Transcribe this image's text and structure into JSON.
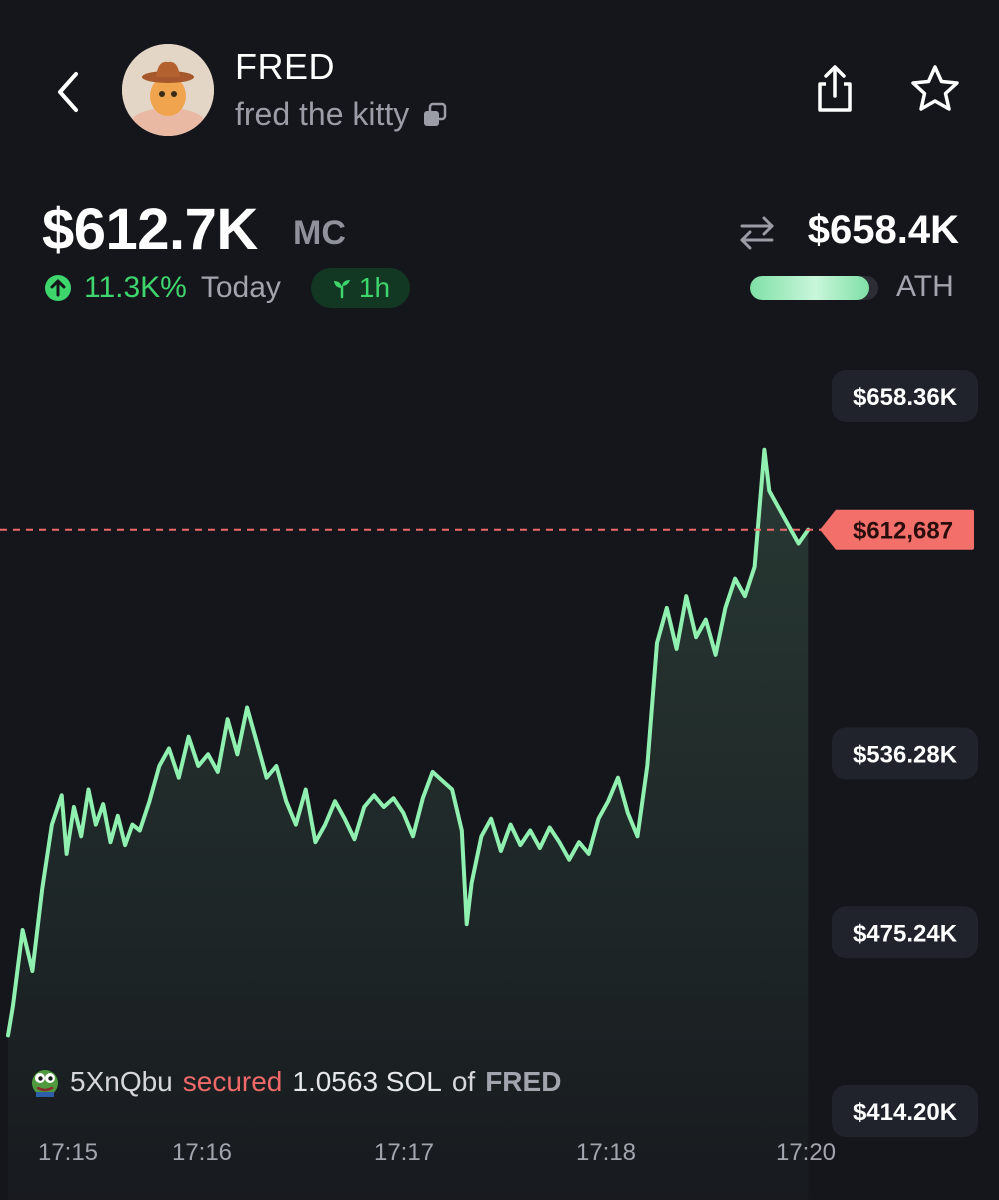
{
  "header": {
    "symbol": "FRED",
    "name": "fred the kitty"
  },
  "stats": {
    "market_cap": "$612.7K",
    "market_cap_label": "MC",
    "change_pct": "11.3K%",
    "change_period": "Today",
    "age_badge": "1h",
    "ath_value": "$658.4K",
    "ath_label": "ATH",
    "ath_progress": 0.93
  },
  "colors": {
    "background": "#15161c",
    "line": "#8ff0b0",
    "positive": "#3ed56d",
    "negative": "#f06969"
  },
  "chart_data": {
    "type": "line",
    "y_ticks": [
      "$658.36K",
      "$536.28K",
      "$475.24K",
      "$414.20K"
    ],
    "y_tick_values": [
      658360,
      536280,
      475240,
      414200
    ],
    "current_price_label": "$612,687",
    "current_price": 612687,
    "x_ticks": [
      "17:15",
      "17:16",
      "17:17",
      "17:18",
      "17:20"
    ],
    "x": [
      "17:15",
      "17:15:30",
      "17:16",
      "17:16:30",
      "17:17",
      "17:17:30",
      "17:18",
      "17:18:30",
      "17:19",
      "17:19:30",
      "17:19:45",
      "17:20"
    ],
    "values": [
      [
        0.0,
        440000
      ],
      [
        0.02,
        450000
      ],
      [
        0.06,
        476000
      ],
      [
        0.1,
        462000
      ],
      [
        0.14,
        490000
      ],
      [
        0.18,
        512000
      ],
      [
        0.22,
        522000
      ],
      [
        0.24,
        502000
      ],
      [
        0.27,
        518000
      ],
      [
        0.3,
        508000
      ],
      [
        0.33,
        524000
      ],
      [
        0.36,
        512000
      ],
      [
        0.39,
        519000
      ],
      [
        0.42,
        506000
      ],
      [
        0.45,
        515000
      ],
      [
        0.48,
        505000
      ],
      [
        0.51,
        512000
      ],
      [
        0.54,
        510000
      ],
      [
        0.58,
        520000
      ],
      [
        0.62,
        532000
      ],
      [
        0.66,
        538000
      ],
      [
        0.7,
        528000
      ],
      [
        0.74,
        542000
      ],
      [
        0.78,
        532000
      ],
      [
        0.82,
        536000
      ],
      [
        0.86,
        530000
      ],
      [
        0.9,
        548000
      ],
      [
        0.94,
        536000
      ],
      [
        0.98,
        552000
      ],
      [
        1.02,
        540000
      ],
      [
        1.06,
        528000
      ],
      [
        1.1,
        532000
      ],
      [
        1.14,
        520000
      ],
      [
        1.18,
        512000
      ],
      [
        1.22,
        524000
      ],
      [
        1.26,
        506000
      ],
      [
        1.3,
        512000
      ],
      [
        1.34,
        520000
      ],
      [
        1.38,
        514000
      ],
      [
        1.42,
        507000
      ],
      [
        1.46,
        518000
      ],
      [
        1.5,
        522000
      ],
      [
        1.54,
        518000
      ],
      [
        1.58,
        521000
      ],
      [
        1.62,
        516000
      ],
      [
        1.66,
        508000
      ],
      [
        1.7,
        521000
      ],
      [
        1.74,
        530000
      ],
      [
        1.78,
        527000
      ],
      [
        1.82,
        524000
      ],
      [
        1.86,
        510000
      ],
      [
        1.88,
        478000
      ],
      [
        1.9,
        492000
      ],
      [
        1.94,
        508000
      ],
      [
        1.98,
        514000
      ],
      [
        2.02,
        503000
      ],
      [
        2.06,
        512000
      ],
      [
        2.1,
        505000
      ],
      [
        2.14,
        510000
      ],
      [
        2.18,
        504000
      ],
      [
        2.22,
        511000
      ],
      [
        2.26,
        506000
      ],
      [
        2.3,
        500000
      ],
      [
        2.34,
        506000
      ],
      [
        2.38,
        502000
      ],
      [
        2.42,
        514000
      ],
      [
        2.46,
        520000
      ],
      [
        2.5,
        528000
      ],
      [
        2.54,
        516000
      ],
      [
        2.58,
        508000
      ],
      [
        2.62,
        532000
      ],
      [
        2.66,
        574000
      ],
      [
        2.7,
        586000
      ],
      [
        2.74,
        572000
      ],
      [
        2.78,
        590000
      ],
      [
        2.82,
        576000
      ],
      [
        2.86,
        582000
      ],
      [
        2.9,
        570000
      ],
      [
        2.94,
        586000
      ],
      [
        2.98,
        596000
      ],
      [
        3.02,
        590000
      ],
      [
        3.06,
        600000
      ],
      [
        3.1,
        640000
      ],
      [
        3.12,
        626000
      ],
      [
        3.16,
        620000
      ],
      [
        3.2,
        614000
      ],
      [
        3.24,
        608000
      ],
      [
        3.28,
        612687
      ]
    ],
    "area_fill": true,
    "dashed_current_line": true
  },
  "trade": {
    "wallet": "5XnQbu",
    "action": "secured",
    "amount": "1.0563 SOL",
    "connector": "of",
    "token": "FRED"
  }
}
